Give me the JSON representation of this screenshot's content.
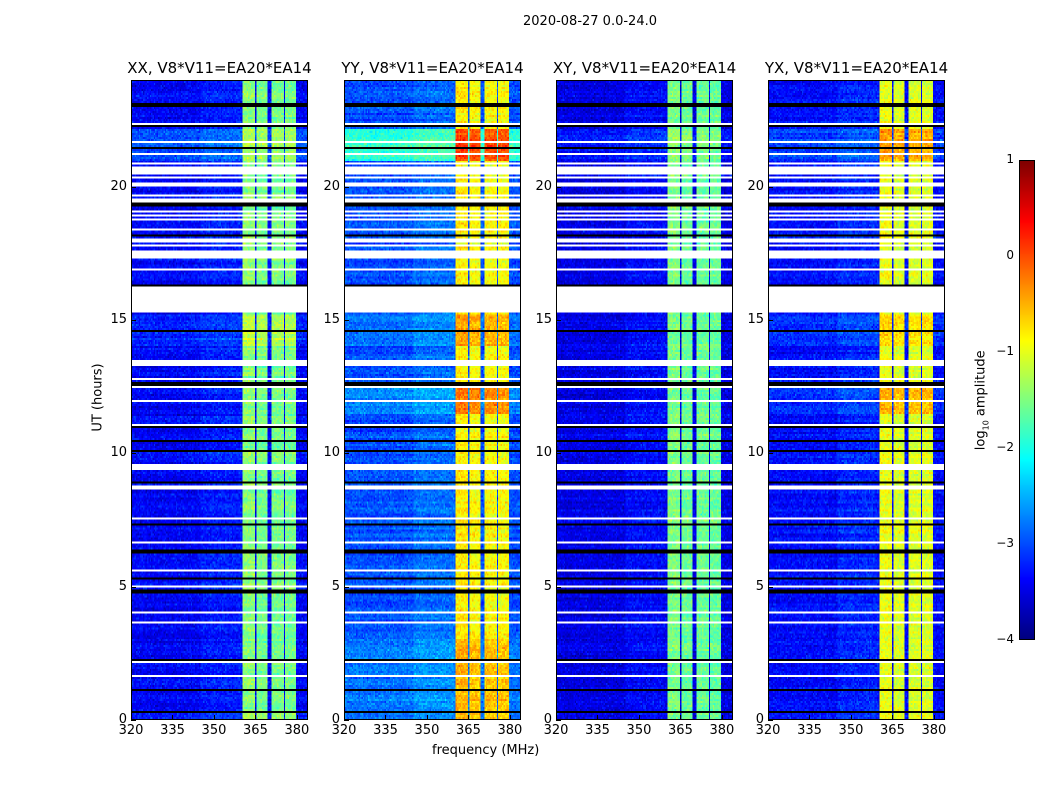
{
  "chart_data": {
    "type": "heatmap",
    "title": "2020-08-27 0.0-24.0",
    "xlabel": "frequency (MHz)",
    "ylabel": "UT (hours)",
    "x_range": [
      320,
      384
    ],
    "y_range": [
      0,
      24
    ],
    "xticks": [
      320,
      335,
      350,
      365,
      380
    ],
    "xtick_labels": [
      "320",
      "335",
      "350",
      "365",
      "380"
    ],
    "yticks": [
      0,
      5,
      10,
      15,
      20
    ],
    "ytick_labels": [
      "0",
      "5",
      "10",
      "15",
      "20"
    ],
    "colormap": "jet",
    "colorbar": {
      "label_prefix": "log",
      "label_sub": "10",
      "label_suffix": " amplitude",
      "range": [
        -4,
        1
      ],
      "ticks": [
        1,
        0,
        -1,
        -2,
        -3,
        -4
      ],
      "tick_labels": [
        "1",
        "0",
        "−1",
        "−2",
        "−3",
        "−4"
      ]
    },
    "bright_subbands_mhz": [
      [
        360.5,
        364.8
      ],
      [
        365.4,
        369.6
      ],
      [
        370.8,
        375.3
      ],
      [
        375.9,
        380.0
      ]
    ],
    "flagged_hours": [
      [
        22.35,
        22.45
      ],
      [
        21.65,
        21.75
      ],
      [
        21.25,
        21.32
      ],
      [
        20.85,
        20.95
      ],
      [
        20.5,
        20.8
      ],
      [
        20.35,
        20.42
      ],
      [
        20.0,
        20.15
      ],
      [
        19.65,
        19.72
      ],
      [
        19.45,
        19.6
      ],
      [
        19.05,
        19.12
      ],
      [
        18.9,
        18.95
      ],
      [
        18.75,
        18.8
      ],
      [
        18.4,
        18.48
      ],
      [
        17.95,
        18.1
      ],
      [
        17.75,
        17.82
      ],
      [
        17.3,
        17.65
      ],
      [
        16.85,
        16.92
      ],
      [
        16.2,
        16.28
      ],
      [
        15.3,
        16.17
      ],
      [
        14.82,
        14.88
      ],
      [
        13.28,
        13.5
      ],
      [
        12.75,
        12.82
      ],
      [
        12.45,
        12.52
      ],
      [
        11.9,
        11.97
      ],
      [
        11.05,
        11.12
      ],
      [
        9.4,
        9.6
      ],
      [
        8.65,
        8.75
      ],
      [
        8.0,
        8.06
      ],
      [
        7.5,
        7.56
      ],
      [
        6.95,
        7.0
      ],
      [
        6.6,
        6.65
      ],
      [
        6.05,
        6.1
      ],
      [
        5.55,
        5.6
      ],
      [
        4.95,
        5.02
      ],
      [
        4.4,
        4.46
      ],
      [
        4.0,
        4.05
      ],
      [
        3.6,
        3.66
      ],
      [
        2.9,
        2.95
      ],
      [
        2.1,
        2.16
      ],
      [
        1.6,
        1.68
      ]
    ],
    "black_row_hours": [
      23.1,
      22.3,
      21.5,
      19.35,
      19.3,
      18.2,
      16.3,
      14.6,
      13.45,
      12.6,
      11.0,
      10.45,
      10.1,
      8.9,
      7.3,
      6.3,
      5.3,
      4.8,
      2.2,
      1.1,
      0.25
    ],
    "panels": [
      {
        "title": "XX, V8*V11=EA20*EA14",
        "background_level": -3.4,
        "band_level": -1.55,
        "enhancements": [
          {
            "hours": [
              21.0,
              22.2
            ],
            "bg_delta": 0.4,
            "band_delta": 0.2
          },
          {
            "hours": [
              14.0,
              15.2
            ],
            "bg_delta": 0.2,
            "band_delta": 0.3
          }
        ]
      },
      {
        "title": "YY, V8*V11=EA20*EA14",
        "background_level": -3.0,
        "band_level": -0.9,
        "enhancements": [
          {
            "hours": [
              21.0,
              22.2
            ],
            "bg_delta": 1.1,
            "band_delta": 0.9
          },
          {
            "hours": [
              11.5,
              12.7
            ],
            "bg_delta": 0.3,
            "band_delta": 0.6
          },
          {
            "hours": [
              14.0,
              15.2
            ],
            "bg_delta": 0.2,
            "band_delta": 0.4
          },
          {
            "hours": [
              0,
              3
            ],
            "bg_delta": 0.2,
            "band_delta": 0.3
          }
        ]
      },
      {
        "title": "XY, V8*V11=EA20*EA14",
        "background_level": -3.5,
        "band_level": -1.6,
        "enhancements": [
          {
            "hours": [
              21.0,
              22.2
            ],
            "bg_delta": 0.2,
            "band_delta": 0.1
          }
        ]
      },
      {
        "title": "YX, V8*V11=EA20*EA14",
        "background_level": -3.35,
        "band_level": -1.05,
        "enhancements": [
          {
            "hours": [
              21.0,
              22.2
            ],
            "bg_delta": 0.3,
            "band_delta": 0.6
          },
          {
            "hours": [
              11.5,
              12.7
            ],
            "bg_delta": 0.2,
            "band_delta": 0.5
          },
          {
            "hours": [
              14.0,
              15.2
            ],
            "bg_delta": 0.2,
            "band_delta": 0.3
          }
        ]
      }
    ]
  }
}
